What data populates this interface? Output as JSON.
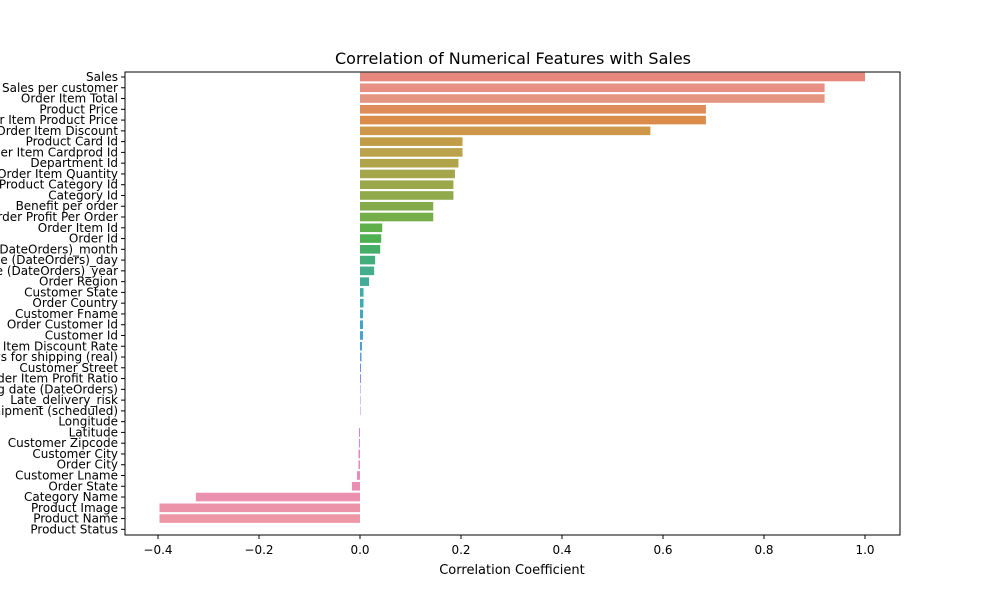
{
  "chart_data": {
    "type": "bar",
    "orientation": "horizontal",
    "title": "Correlation of Numerical Features with Sales",
    "xlabel": "Correlation Coefficient",
    "ylabel": "",
    "xlim": [
      -0.4,
      1.0
    ],
    "xticks": [
      -0.4,
      -0.2,
      0.0,
      0.2,
      0.4,
      0.6,
      0.8,
      1.0
    ],
    "xtick_labels": [
      "−0.4",
      "−0.2",
      "0.0",
      "0.2",
      "0.4",
      "0.6",
      "0.8",
      "1.0"
    ],
    "grid": false,
    "legend": "none",
    "categories": [
      "Sales",
      "Sales per customer",
      "Order Item Total",
      "Product Price",
      "Order Item Product Price",
      "Order Item Discount",
      "Product Card Id",
      "Order Item Cardprod Id",
      "Department Id",
      "Order Item Quantity",
      "Product Category Id",
      "Category Id",
      "Benefit per order",
      "Order Profit Per Order",
      "Order Item Id",
      "Order Id",
      "order date (DateOrders)_month",
      "order date (DateOrders)_day",
      "order date (DateOrders)_year",
      "Order Region",
      "Customer State",
      "Order Country",
      "Customer Fname",
      "Order Customer Id",
      "Customer Id",
      "Order Item Discount Rate",
      "Days for shipping (real)",
      "Customer Street",
      "Order Item Profit Ratio",
      "shipping date (DateOrders)",
      "Late_delivery_risk",
      "Days for shipment (scheduled)",
      "Longitude",
      "Latitude",
      "Customer Zipcode",
      "Customer City",
      "Order City",
      "Customer Lname",
      "Order State",
      "Category Name",
      "Product Image",
      "Product Name",
      "Product Status"
    ],
    "values": [
      1.0,
      0.92,
      0.92,
      0.685,
      0.685,
      0.575,
      0.203,
      0.203,
      0.195,
      0.188,
      0.185,
      0.185,
      0.145,
      0.145,
      0.044,
      0.042,
      0.04,
      0.03,
      0.028,
      0.018,
      0.007,
      0.007,
      0.006,
      0.006,
      0.006,
      0.004,
      0.003,
      0.002,
      0.002,
      0.001,
      0.001,
      0.001,
      0.0,
      -0.002,
      -0.002,
      -0.003,
      -0.003,
      -0.006,
      -0.016,
      -0.325,
      -0.397,
      -0.397,
      0.0
    ],
    "colors": [
      "#e8877e",
      "#e88f83",
      "#e39580",
      "#dd8c5a",
      "#dc8c4a",
      "#cd9849",
      "#c29d48",
      "#b9a249",
      "#b0a44b",
      "#a5a64c",
      "#9aa84b",
      "#8fa94b",
      "#83ab4c",
      "#75ad49",
      "#5fb04a",
      "#4fb052",
      "#46ae69",
      "#44ad7c",
      "#43ad8c",
      "#42ac99",
      "#41aca5",
      "#40abb1",
      "#41a9bc",
      "#43a6c6",
      "#48a3d0",
      "#4ea0db",
      "#5b9be3",
      "#6b95e8",
      "#7e8fec",
      "#938aef",
      "#a685ee",
      "#b883e9",
      "#c682e2",
      "#d181da",
      "#db82d2",
      "#e184c9",
      "#e686c1",
      "#e98aba",
      "#ea8db4",
      "#eb90ae",
      "#ec93a9",
      "#ed96a5",
      "#ee98a2"
    ]
  }
}
